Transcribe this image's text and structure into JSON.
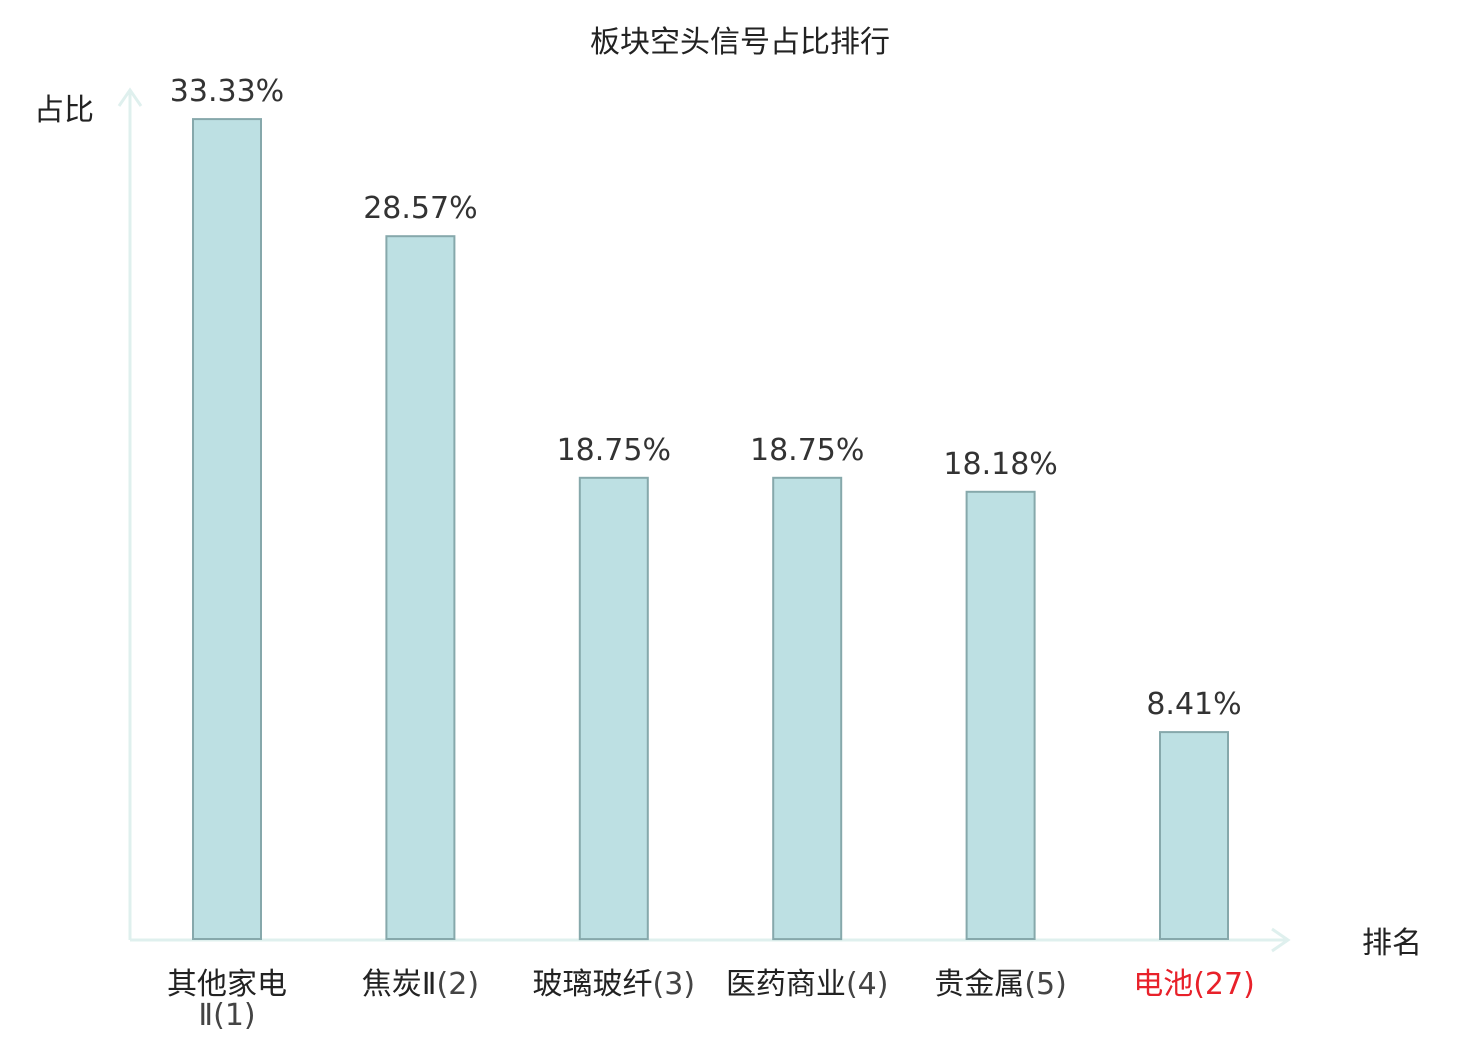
{
  "chart_data": {
    "type": "bar",
    "title": "板块空头信号占比排行",
    "ylabel": "占比",
    "xlabel": "排名",
    "categories": [
      {
        "name": "其他家电Ⅱ",
        "rank": "(1)",
        "highlight": false
      },
      {
        "name": "焦炭Ⅱ",
        "rank": "(2)",
        "highlight": false
      },
      {
        "name": "玻璃玻纤",
        "rank": "(3)",
        "highlight": false
      },
      {
        "name": "医药商业",
        "rank": "(4)",
        "highlight": false
      },
      {
        "name": "贵金属",
        "rank": "(5)",
        "highlight": false
      },
      {
        "name": "电池",
        "rank": "(27)",
        "highlight": true
      }
    ],
    "values": [
      33.33,
      28.57,
      18.75,
      18.75,
      18.18,
      8.41
    ],
    "value_labels": [
      "33.33%",
      "28.57%",
      "18.75%",
      "18.75%",
      "18.18%",
      "8.41%"
    ],
    "ylim": [
      0,
      35
    ],
    "grid": false,
    "legend": "none",
    "colors": {
      "bar_fill": "#bde0e3",
      "bar_stroke": "#86a8ab",
      "axis": "#dff0ee",
      "text": "#222222",
      "value_text": "#333333",
      "rank_text": "#444444",
      "highlight": "#e8212a"
    }
  }
}
